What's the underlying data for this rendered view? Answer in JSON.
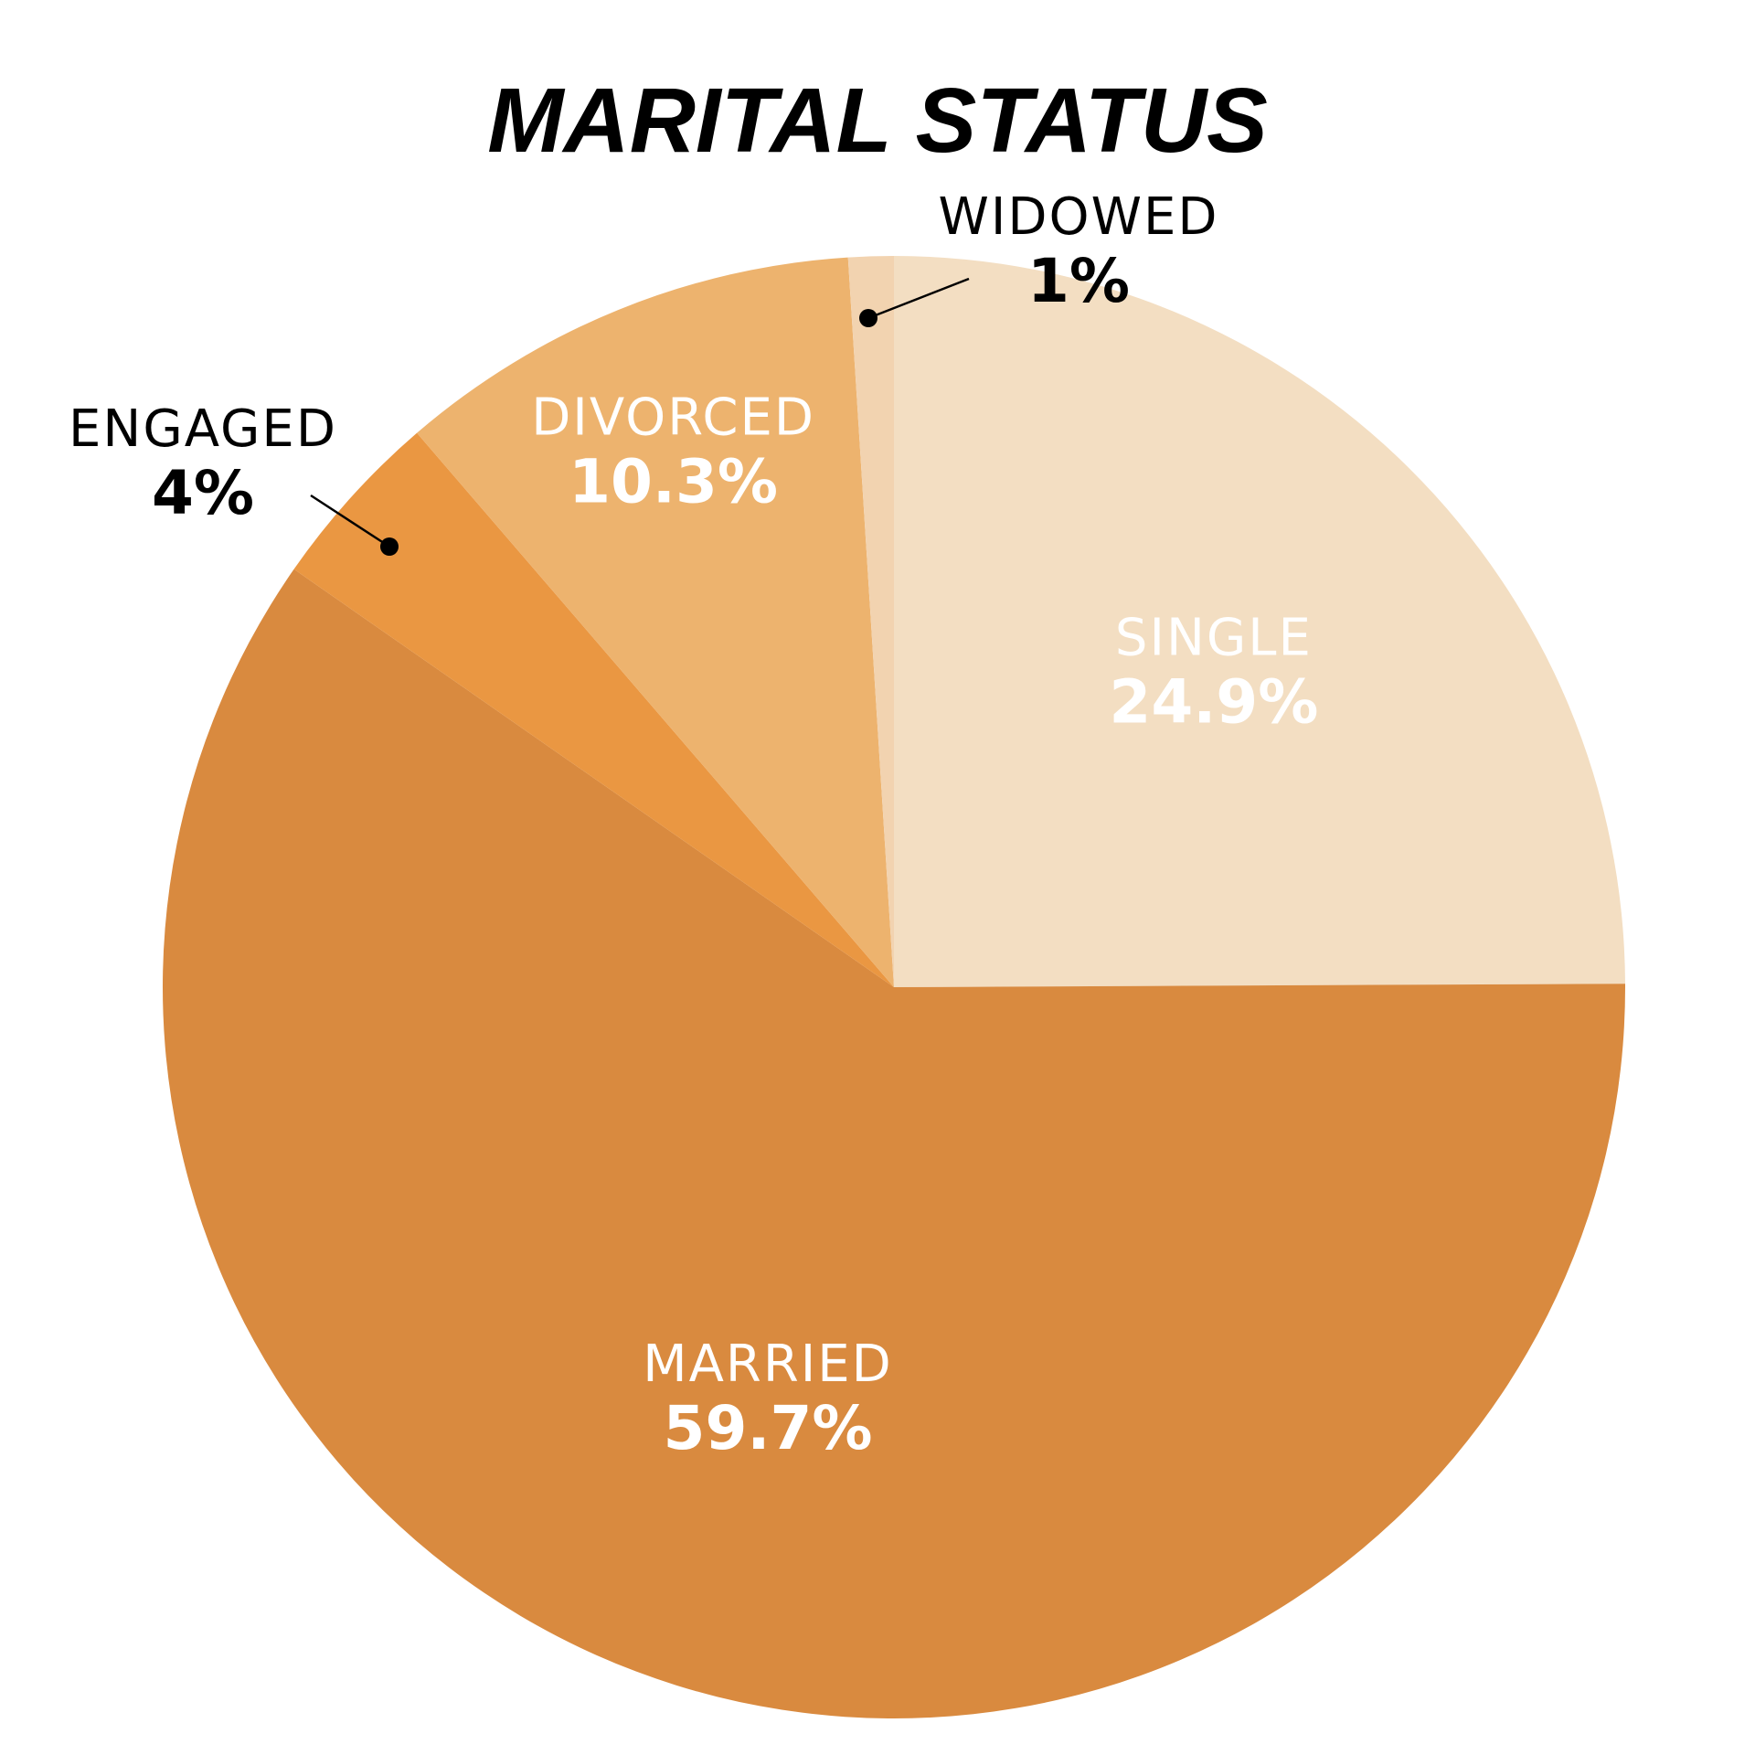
{
  "chart_data": {
    "type": "pie",
    "title": "MARITAL STATUS",
    "slices": [
      {
        "name": "SINGLE",
        "value": 24.9,
        "label": "24.9%",
        "color": "#F3DEC2"
      },
      {
        "name": "MARRIED",
        "value": 59.7,
        "label": "59.7%",
        "color": "#D98A3F"
      },
      {
        "name": "ENGAGED",
        "value": 4,
        "label": "4%",
        "color": "#EA9742"
      },
      {
        "name": "DIVORCED",
        "value": 10.3,
        "label": "10.3%",
        "color": "#EDB36E"
      },
      {
        "name": "WIDOWED",
        "value": 1,
        "label": "1%",
        "color": "#F2D3B0"
      }
    ],
    "start": "top, clockwise"
  }
}
